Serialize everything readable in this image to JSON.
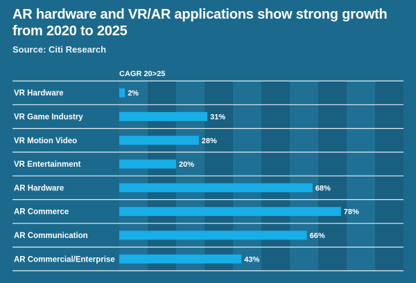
{
  "title": "AR hardware and VR/AR applications show strong growth from 2020 to 2025",
  "source": "Source: Citi Research",
  "colors": {
    "background": "#1b6a8d",
    "band_dark": "#185f80",
    "band_light": "#1f7094",
    "row_line": "#e8f0f4",
    "bar": "#18aee8",
    "text": "#ffffff"
  },
  "chart_data": {
    "type": "bar",
    "orientation": "horizontal",
    "title": "AR hardware and VR/AR applications show strong growth from 2020 to 2025",
    "column_header": "CAGR 20>25",
    "categories": [
      "VR Hardware",
      "VR Game Industry",
      "VR Motion Video",
      "VR Entertainment",
      "AR Hardware",
      "AR Commerce",
      "AR Communication",
      "AR Commercial/Enterprise"
    ],
    "values": [
      2,
      31,
      28,
      20,
      68,
      78,
      66,
      43
    ],
    "value_labels": [
      "2%",
      "31%",
      "28%",
      "20%",
      "68%",
      "78%",
      "66%",
      "43%"
    ],
    "xlim": [
      0,
      100
    ],
    "unit": "%",
    "grid": true,
    "legend": "none"
  }
}
